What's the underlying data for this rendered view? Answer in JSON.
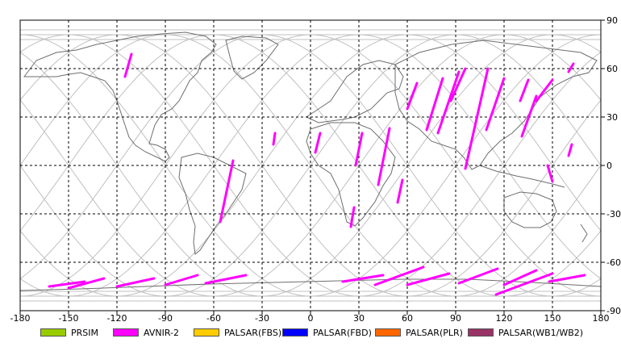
{
  "map": {
    "x_ticks": [
      "-180",
      "-150",
      "-120",
      "-90",
      "-60",
      "-30",
      "0",
      "30",
      "60",
      "90",
      "120",
      "150",
      "180"
    ],
    "y_ticks": [
      "90",
      "60",
      "30",
      "0",
      "-30",
      "-60",
      "-90"
    ],
    "colors": {
      "background": "#ffffff",
      "orbit": "#c0c0c0",
      "coast": "#6e6e6e",
      "grid": "#000000",
      "avnir": "#ff00ff"
    }
  },
  "legend": [
    {
      "label": "PRSIM",
      "color": "#99cc00"
    },
    {
      "label": "AVNIR-2",
      "color": "#ff00ff"
    },
    {
      "label": "PALSAR(FBS)",
      "color": "#ffcc00"
    },
    {
      "label": "PALSAR(FBD)",
      "color": "#0000ff"
    },
    {
      "label": "PALSAR(PLR)",
      "color": "#ff6600"
    },
    {
      "label": "PALSAR(WB1/WB2)",
      "color": "#993366"
    }
  ],
  "acquisitions": {
    "sensor": "AVNIR-2",
    "strips": [
      [
        [
          -111,
          69
        ],
        [
          -115,
          55
        ]
      ],
      [
        [
          -48,
          3
        ],
        [
          -56,
          -35
        ]
      ],
      [
        [
          -22,
          20
        ],
        [
          -23,
          13
        ]
      ],
      [
        [
          6,
          20
        ],
        [
          3,
          8
        ]
      ],
      [
        [
          32,
          20
        ],
        [
          28,
          0
        ]
      ],
      [
        [
          49,
          23
        ],
        [
          42,
          -12
        ]
      ],
      [
        [
          27,
          -26
        ],
        [
          25,
          -38
        ]
      ],
      [
        [
          57,
          -9
        ],
        [
          54,
          -23
        ]
      ],
      [
        [
          66,
          51
        ],
        [
          60,
          35
        ]
      ],
      [
        [
          82,
          54
        ],
        [
          72,
          22
        ]
      ],
      [
        [
          92,
          58
        ],
        [
          79,
          20
        ]
      ],
      [
        [
          96,
          60
        ],
        [
          87,
          40
        ]
      ],
      [
        [
          110,
          60
        ],
        [
          96,
          -2
        ]
      ],
      [
        [
          120,
          54
        ],
        [
          109,
          22
        ]
      ],
      [
        [
          135,
          53
        ],
        [
          130,
          40
        ]
      ],
      [
        [
          140,
          43
        ],
        [
          131,
          18
        ]
      ],
      [
        [
          150,
          53
        ],
        [
          140,
          40
        ]
      ],
      [
        [
          162,
          13
        ],
        [
          160,
          6
        ]
      ],
      [
        [
          163,
          63
        ],
        [
          160,
          58
        ]
      ],
      [
        [
          147,
          0
        ],
        [
          150,
          -10
        ]
      ],
      [
        [
          -162,
          -75
        ],
        [
          -140,
          -72
        ]
      ],
      [
        [
          -150,
          -76
        ],
        [
          -128,
          -70
        ]
      ],
      [
        [
          -120,
          -75
        ],
        [
          -97,
          -70
        ]
      ],
      [
        [
          -90,
          -74
        ],
        [
          -70,
          -68
        ]
      ],
      [
        [
          -65,
          -73
        ],
        [
          -40,
          -68
        ]
      ],
      [
        [
          20,
          -72
        ],
        [
          45,
          -68
        ]
      ],
      [
        [
          40,
          -74
        ],
        [
          70,
          -63
        ]
      ],
      [
        [
          60,
          -74
        ],
        [
          86,
          -67
        ]
      ],
      [
        [
          92,
          -73
        ],
        [
          116,
          -64
        ]
      ],
      [
        [
          120,
          -74
        ],
        [
          140,
          -65
        ]
      ],
      [
        [
          115,
          -80
        ],
        [
          150,
          -67
        ]
      ],
      [
        [
          148,
          -72
        ],
        [
          170,
          -68
        ]
      ]
    ]
  }
}
